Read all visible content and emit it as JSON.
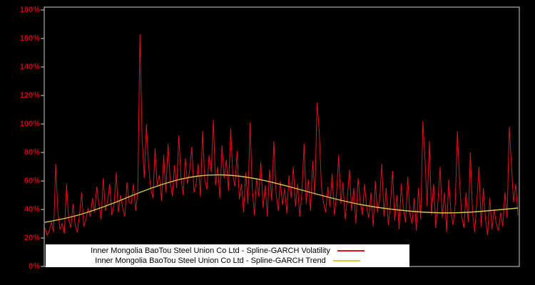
{
  "chart_data": {
    "type": "line",
    "title": "",
    "xlabel": "",
    "ylabel": "",
    "ylim": [
      0,
      180
    ],
    "ytick_labels": [
      "0%",
      "20%",
      "40%",
      "60%",
      "80%",
      "100%",
      "120%",
      "140%",
      "160%",
      "180%"
    ],
    "ytick_values": [
      0,
      20,
      40,
      60,
      80,
      100,
      120,
      140,
      160,
      180
    ],
    "grid": false,
    "legend_position": "bottom-center",
    "colors": {
      "background": "#000000",
      "plot_border": "#d0d0d0",
      "axis_label": "#cc0010",
      "legend_background": "#ffffff",
      "legend_text": "#000000"
    },
    "series": [
      {
        "name": "Inner Mongolia BaoTou Steel Union Co Ltd - Spline-GARCH Volatility",
        "color": "#e01020",
        "values": [
          27,
          22,
          25,
          31,
          24,
          72,
          38,
          26,
          30,
          23,
          58,
          33,
          27,
          44,
          29,
          24,
          36,
          52,
          28,
          33,
          41,
          35,
          48,
          38,
          56,
          44,
          33,
          62,
          39,
          46,
          58,
          36,
          43,
          66,
          38,
          50,
          41,
          35,
          59,
          45,
          44,
          58,
          39,
          52,
          163,
          90,
          62,
          100,
          71,
          55,
          48,
          83,
          57,
          64,
          46,
          78,
          52,
          86,
          60,
          49,
          71,
          55,
          92,
          63,
          50,
          76,
          58,
          67,
          84,
          52,
          58,
          72,
          49,
          95,
          61,
          54,
          78,
          66,
          103,
          57,
          70,
          48,
          85,
          62,
          75,
          53,
          97,
          64,
          56,
          81,
          47,
          58,
          38,
          66,
          44,
          101,
          55,
          36,
          62,
          49,
          73,
          41,
          57,
          35,
          68,
          46,
          88,
          52,
          39,
          60,
          43,
          55,
          37,
          64,
          48,
          70,
          42,
          58,
          35,
          52,
          86,
          44,
          61,
          39,
          74,
          50,
          115,
          95,
          57,
          45,
          38,
          56,
          42,
          65,
          36,
          50,
          78,
          44,
          59,
          33,
          47,
          68,
          39,
          55,
          30,
          62,
          45,
          36,
          58,
          41,
          34,
          52,
          28,
          60,
          38,
          47,
          72,
          35,
          55,
          29,
          44,
          67,
          32,
          50,
          26,
          58,
          40,
          31,
          63,
          37,
          30,
          48,
          25,
          55,
          33,
          102,
          75,
          42,
          88,
          36,
          58,
          27,
          46,
          70,
          34,
          52,
          24,
          61,
          38,
          29,
          44,
          95,
          60,
          35,
          27,
          52,
          31,
          80,
          38,
          24,
          46,
          70,
          28,
          55,
          33,
          22,
          48,
          26,
          40,
          30,
          25,
          38,
          28,
          52,
          34,
          98,
          72,
          45,
          58,
          36
        ]
      },
      {
        "name": "Inner Mongolia BaoTou Steel Union Co Ltd - Spline-GARCH Trend",
        "color": "#d2c84a",
        "trend_points": [
          [
            0,
            31
          ],
          [
            0.05,
            34
          ],
          [
            0.1,
            39
          ],
          [
            0.15,
            45
          ],
          [
            0.2,
            52
          ],
          [
            0.25,
            58
          ],
          [
            0.3,
            62.5
          ],
          [
            0.35,
            64.5
          ],
          [
            0.4,
            64
          ],
          [
            0.45,
            61.5
          ],
          [
            0.5,
            57.5
          ],
          [
            0.55,
            53
          ],
          [
            0.6,
            48.5
          ],
          [
            0.65,
            44.5
          ],
          [
            0.7,
            41.5
          ],
          [
            0.75,
            39.5
          ],
          [
            0.8,
            38
          ],
          [
            0.85,
            37.5
          ],
          [
            0.9,
            38
          ],
          [
            0.95,
            39.5
          ],
          [
            1,
            41
          ]
        ]
      }
    ]
  }
}
